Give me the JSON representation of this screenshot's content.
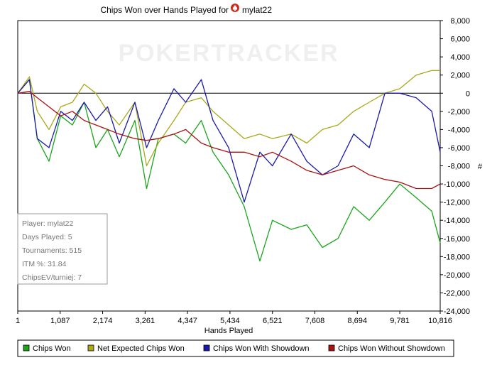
{
  "chart_data": {
    "type": "line",
    "title": "Chips Won over Hands Played for",
    "player_name": "mylat22",
    "title_icon": "spade-icon",
    "watermark": "POKERTRACKER",
    "xlabel": "Hands Played",
    "ylabel": "#",
    "xlim": [
      1,
      10816
    ],
    "ylim": [
      -24000,
      8000
    ],
    "x_ticks": [
      1,
      1087,
      2174,
      3261,
      4347,
      5434,
      6521,
      7608,
      8694,
      9781,
      10816
    ],
    "x_tick_labels": [
      "1",
      "1,087",
      "2,174",
      "3,261",
      "4,347",
      "5,434",
      "6,521",
      "7,608",
      "8,694",
      "9,781",
      "10,816"
    ],
    "y_ticks": [
      8000,
      6000,
      4000,
      2000,
      0,
      -2000,
      -4000,
      -6000,
      -8000,
      -10000,
      -12000,
      -14000,
      -16000,
      -18000,
      -20000,
      -22000,
      -24000
    ],
    "y_tick_labels": [
      "8,000",
      "6,000",
      "4,000",
      "2,000",
      "0",
      "-2,000",
      "-4,000",
      "-6,000",
      "-8,000",
      "-10,000",
      "-12,000",
      "-14,000",
      "-16,000",
      "-18,000",
      "-20,000",
      "-22,000",
      "-24,000"
    ],
    "x": [
      1,
      300,
      500,
      800,
      1100,
      1400,
      1700,
      2000,
      2300,
      2600,
      3000,
      3300,
      3600,
      4000,
      4300,
      4700,
      5000,
      5400,
      5800,
      6200,
      6521,
      7000,
      7400,
      7800,
      8200,
      8600,
      9000,
      9400,
      9781,
      10200,
      10600,
      10816
    ],
    "series": [
      {
        "name": "Chips Won",
        "color": "#1aa51a",
        "values": [
          0,
          1500,
          -5000,
          -7500,
          -2500,
          -3500,
          -1000,
          -6000,
          -4000,
          -7000,
          -3000,
          -10500,
          -5000,
          -4500,
          -5500,
          -3000,
          -6500,
          -9000,
          -12500,
          -18500,
          -14000,
          -15000,
          -14500,
          -17000,
          -16000,
          -12500,
          -14000,
          -12000,
          -10000,
          -11500,
          -13000,
          -16500
        ]
      },
      {
        "name": "Net Expected Chips Won",
        "color": "#a9a91a",
        "values": [
          0,
          1800,
          -2000,
          -4000,
          -1500,
          -1000,
          1000,
          0,
          -2000,
          -3500,
          -1000,
          -8000,
          -5500,
          -3000,
          -1000,
          -500,
          -2000,
          -3500,
          -5000,
          -4500,
          -5000,
          -4500,
          -5500,
          -4000,
          -3500,
          -2000,
          -1000,
          0,
          500,
          2000,
          2500,
          2500
        ]
      },
      {
        "name": "Chips Won With Showdown",
        "color": "#1a1aa8",
        "values": [
          0,
          1500,
          -5000,
          -6000,
          -2000,
          -3000,
          -1000,
          -3000,
          -1500,
          -5500,
          -1000,
          -6000,
          -3000,
          500,
          -1000,
          1500,
          -3000,
          -6000,
          -12000,
          -6500,
          -8000,
          -4500,
          -7500,
          -9000,
          -8000,
          -4500,
          -6000,
          0,
          0,
          -500,
          -2000,
          -6500
        ]
      },
      {
        "name": "Chips Won Without Showdown",
        "color": "#aa1111",
        "values": [
          0,
          200,
          -500,
          -1500,
          -2500,
          -2000,
          -3000,
          -3500,
          -4000,
          -4500,
          -5000,
          -5200,
          -5000,
          -4500,
          -4000,
          -5500,
          -6000,
          -6500,
          -6500,
          -7000,
          -6500,
          -7500,
          -8500,
          -9000,
          -8500,
          -8000,
          -9000,
          -9500,
          -9800,
          -10500,
          -10500,
          -10000
        ]
      }
    ],
    "grid": false,
    "legend_position": "bottom",
    "zero_line": true
  },
  "info_box": {
    "player": "Player: mylat22",
    "days": "Days Played: 5",
    "tournaments": "Tournaments: 515",
    "itm": "ITM %: 31.84",
    "chipsev": "ChipsEV/turniej: 7"
  }
}
